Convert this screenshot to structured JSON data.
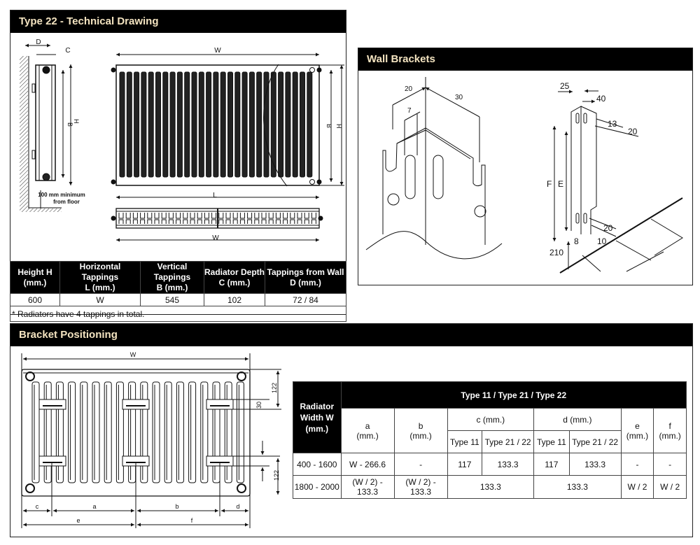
{
  "technical_drawing": {
    "title": "Type 22 - Technical Drawing",
    "labels": {
      "d": "D",
      "c": "C",
      "w_top": "W",
      "b_side": "B",
      "h_side": "H",
      "b_front": "B",
      "h_front": "H",
      "l": "L",
      "w_bottom": "W",
      "floor_note_1": "100 mm minimum",
      "floor_note_2": "from floor"
    },
    "table": {
      "headers": [
        [
          "Height H",
          "(mm.)"
        ],
        [
          "Horizontal Tappings",
          "L (mm.)"
        ],
        [
          "Vertical Tappings",
          "B (mm.)"
        ],
        [
          "Radiator Depth",
          "C (mm.)"
        ],
        [
          "Tappings from Wall",
          "D (mm.)"
        ]
      ],
      "row": [
        "600",
        "W",
        "545",
        "102",
        "72 / 84"
      ],
      "note": "* Radiators have 4 tappings in total."
    }
  },
  "wall_brackets": {
    "title": "Wall Brackets",
    "labels": {
      "d20": "20",
      "d7": "7",
      "d30": "30",
      "d25": "25",
      "d40": "40",
      "d13": "13",
      "d20b": "20",
      "f": "F",
      "e": "E",
      "d20c": "20",
      "d8": "8",
      "d10": "10",
      "d210": "210"
    }
  },
  "bracket_positioning": {
    "title": "Bracket Positioning",
    "labels": {
      "w": "W",
      "v122a": "122",
      "v30": "30",
      "v122b": "122",
      "c": "c",
      "a": "a",
      "b": "b",
      "d": "d",
      "e": "e",
      "f": "f"
    },
    "table": {
      "row_header": [
        "Radiator",
        "Width W",
        "(mm.)"
      ],
      "group_header": "Type 11 / Type 21 / Type 22",
      "a": [
        "a",
        "(mm.)"
      ],
      "b": [
        "b",
        "(mm.)"
      ],
      "c": "c (mm.)",
      "d": "d (mm.)",
      "e": [
        "e",
        "(mm.)"
      ],
      "f": [
        "f",
        "(mm.)"
      ],
      "sub": [
        "Type 11",
        "Type 21 / 22",
        "Type 11",
        "Type 21 / 22"
      ],
      "rows": [
        {
          "w": "400 - 1600",
          "a": "W - 266.6",
          "b": "-",
          "c11": "117",
          "c2122": "133.3",
          "d11": "117",
          "d2122": "133.3",
          "e": "-",
          "f": "-"
        },
        {
          "w": "1800 - 2000",
          "a": "(W / 2) - 133.3",
          "b": "(W / 2) - 133.3",
          "c": "133.3",
          "d": "133.3",
          "e": "W / 2",
          "f": "W / 2"
        }
      ]
    }
  },
  "colors": {
    "header_bg": "#000000",
    "header_text": "#f3e3c0"
  }
}
